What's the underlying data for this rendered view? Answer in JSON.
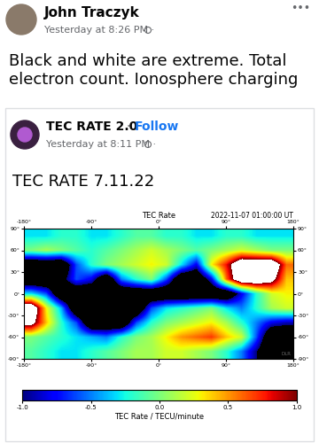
{
  "menu": "•••",
  "post": {
    "author": "John Traczyk",
    "time": "Yesterday at 8:26 PM ·",
    "text": "Black and white are extreme. Total electron count. Ionosphere charging"
  },
  "shared_post": {
    "author": "TEC RATE 2.0",
    "separator": "·",
    "follow": "Follow",
    "time": "Yesterday at 8:11 PM ·",
    "text": "TEC RATE 7.11.22"
  },
  "chart_data": {
    "type": "heatmap",
    "title": "TEC Rate",
    "subtitle": "2022-11-07 01:00:00 UT",
    "watermark": "DLR",
    "xlim": [
      -180,
      180
    ],
    "ylim": [
      -90,
      90
    ],
    "xticks": [
      {
        "value": -180,
        "label": "-180°"
      },
      {
        "value": -90,
        "label": "-90°"
      },
      {
        "value": 0,
        "label": "0°"
      },
      {
        "value": 90,
        "label": "90°"
      },
      {
        "value": 180,
        "label": "180°"
      }
    ],
    "yticks": [
      {
        "value": -90,
        "label": "-90°"
      },
      {
        "value": -60,
        "label": "-60°"
      },
      {
        "value": -30,
        "label": "-30°"
      },
      {
        "value": 0,
        "label": "0°"
      },
      {
        "value": 30,
        "label": "30°"
      },
      {
        "value": 60,
        "label": "60°"
      },
      {
        "value": 90,
        "label": "90°"
      }
    ],
    "cells": [
      [
        -0.3,
        -0.3,
        -0.2,
        -0.2,
        -0.3,
        -0.3,
        -0.2,
        -0.1,
        -0.1,
        -0.2,
        -0.2,
        -0.3,
        -0.3,
        -0.2,
        -0.2,
        -0.3,
        -0.3,
        -0.3
      ],
      [
        0.0,
        0.1,
        0.0,
        -0.1,
        -0.2,
        -0.1,
        0.0,
        0.1,
        0.2,
        0.1,
        0.0,
        -0.1,
        0.0,
        0.1,
        0.2,
        0.1,
        0.0,
        0.0
      ],
      [
        -1.5,
        -1.5,
        -1.5,
        -0.6,
        -0.2,
        0.0,
        0.1,
        0.2,
        0.3,
        0.2,
        -0.3,
        -0.8,
        0.3,
        0.8,
        1.5,
        1.5,
        1.5,
        0.6
      ],
      [
        -1.5,
        -1.5,
        -1.2,
        -0.6,
        -0.8,
        -1.5,
        -0.5,
        -0.2,
        0.0,
        -0.6,
        -1.5,
        -1.5,
        -0.8,
        0.6,
        1.5,
        1.5,
        1.2,
        0.4
      ],
      [
        -0.3,
        -0.6,
        -1.5,
        -1.5,
        -1.5,
        -1.5,
        -1.5,
        -1.5,
        -1.5,
        -1.5,
        -1.5,
        -1.5,
        -1.5,
        -1.5,
        -0.8,
        -0.2,
        0.2,
        0.3
      ],
      [
        1.5,
        0.3,
        -0.4,
        -1.5,
        -1.5,
        -1.5,
        -1.5,
        -1.5,
        -0.6,
        -0.3,
        -0.2,
        -0.1,
        0.0,
        -0.3,
        -0.5,
        -0.2,
        0.1,
        0.2
      ],
      [
        1.2,
        0.4,
        -0.2,
        -0.6,
        -1.5,
        -1.5,
        -1.5,
        -0.6,
        -0.2,
        0.0,
        0.1,
        0.2,
        0.3,
        0.1,
        -0.2,
        -0.5,
        -0.8,
        -0.9
      ],
      [
        0.0,
        -0.1,
        -0.2,
        -0.3,
        -0.4,
        -0.5,
        -0.2,
        0.0,
        0.1,
        0.3,
        0.5,
        0.6,
        0.7,
        0.4,
        0.2,
        -0.6,
        -1.5,
        -1.5
      ],
      [
        -0.1,
        -0.2,
        -0.3,
        -0.3,
        -0.2,
        -0.1,
        0.0,
        0.1,
        0.1,
        0.2,
        0.2,
        0.1,
        0.0,
        -0.2,
        -0.5,
        -1.0,
        -1.5,
        -1.5
      ]
    ],
    "colorbar_label": "TEC Rate / TECU/minute",
    "colorbar_range": [
      -1,
      1
    ],
    "colorbar_ticks": [
      {
        "value": -1,
        "label": "-1.0"
      },
      {
        "value": -0.5,
        "label": "-0.5"
      },
      {
        "value": 0,
        "label": "0.0"
      },
      {
        "value": 0.5,
        "label": "0.5"
      },
      {
        "value": 1,
        "label": "1.0"
      }
    ]
  }
}
